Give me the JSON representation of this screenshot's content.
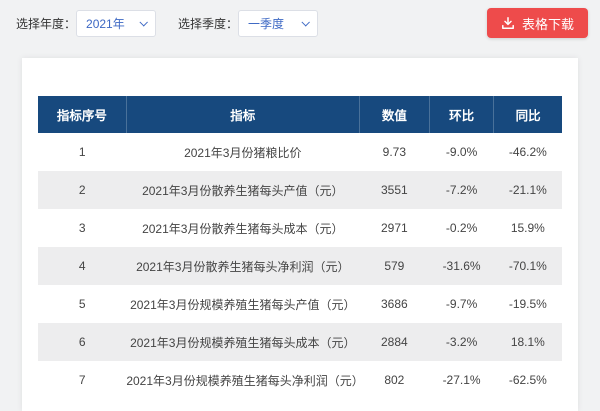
{
  "filters": {
    "year_label": "选择年度：",
    "year_value": "2021年",
    "quarter_label": "选择季度：",
    "quarter_value": "一季度"
  },
  "download": {
    "label": "表格下载"
  },
  "colors": {
    "header_bg": "#17497e",
    "accent_red": "#ee4b4b",
    "link_blue": "#3d68c4"
  },
  "table": {
    "headers": [
      "指标序号",
      "指标",
      "数值",
      "环比",
      "同比"
    ],
    "rows": [
      [
        "1",
        "2021年3月份猪粮比价",
        "9.73",
        "-9.0%",
        "-46.2%"
      ],
      [
        "2",
        "2021年3月份散养生猪每头产值（元）",
        "3551",
        "-7.2%",
        "-21.1%"
      ],
      [
        "3",
        "2021年3月份散养生猪每头成本（元）",
        "2971",
        "-0.2%",
        "15.9%"
      ],
      [
        "4",
        "2021年3月份散养生猪每头净利润（元）",
        "579",
        "-31.6%",
        "-70.1%"
      ],
      [
        "5",
        "2021年3月份规模养殖生猪每头产值（元）",
        "3686",
        "-9.7%",
        "-19.5%"
      ],
      [
        "6",
        "2021年3月份规模养殖生猪每头成本（元）",
        "2884",
        "-3.2%",
        "18.1%"
      ],
      [
        "7",
        "2021年3月份规模养殖生猪每头净利润（元）",
        "802",
        "-27.1%",
        "-62.5%"
      ]
    ]
  }
}
